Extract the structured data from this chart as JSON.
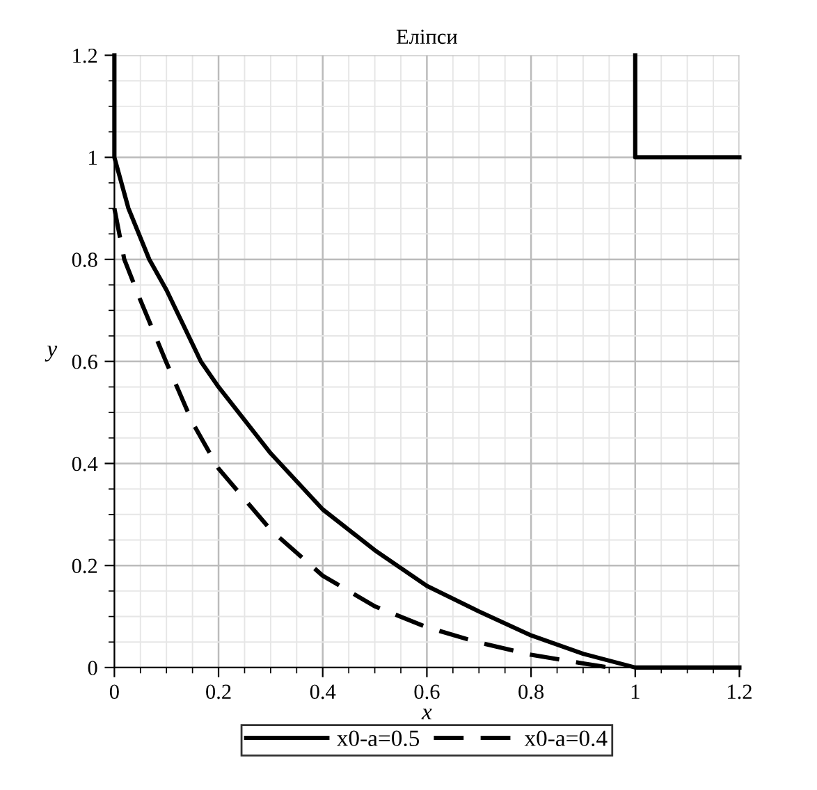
{
  "chart_data": {
    "type": "line",
    "title": "Еліпси",
    "xlabel": "x",
    "ylabel": "y",
    "xlim": [
      0,
      1.2
    ],
    "ylim": [
      0,
      1.2
    ],
    "xticks": [
      0,
      0.2,
      0.4,
      0.6,
      0.8,
      1,
      1.2
    ],
    "yticks": [
      0,
      0.2,
      0.4,
      0.6,
      0.8,
      1,
      1.2
    ],
    "grid": true,
    "legend": "bottom",
    "series": [
      {
        "name": "x0-a=0.5",
        "color": "#000000",
        "line_style": "solid",
        "x": [
          0,
          0,
          0.027,
          0.067,
          0.1,
          0.166,
          0.2,
          0.3,
          0.4,
          0.5,
          0.6,
          0.7,
          0.8,
          0.9,
          1,
          1.2,
          1.1,
          1,
          1,
          1.2
        ],
        "values": [
          1.2,
          1,
          0.9,
          0.8,
          0.74,
          0.6,
          0.55,
          0.42,
          0.31,
          0.23,
          0.16,
          0.11,
          0.063,
          0.027,
          0,
          0,
          null,
          1.2,
          1,
          1
        ]
      },
      {
        "name": "x0-a=0.4",
        "color": "#000000",
        "line_style": "dashed",
        "x": [
          0,
          0.019,
          0.05,
          0.099,
          0.15,
          0.2,
          0.3,
          0.4,
          0.5,
          0.6,
          0.7,
          0.8,
          0.9,
          0.95
        ],
        "values": [
          0.9,
          0.8,
          0.72,
          0.6,
          0.48,
          0.39,
          0.27,
          0.18,
          0.12,
          0.079,
          0.049,
          0.025,
          0.008,
          0
        ]
      }
    ]
  }
}
